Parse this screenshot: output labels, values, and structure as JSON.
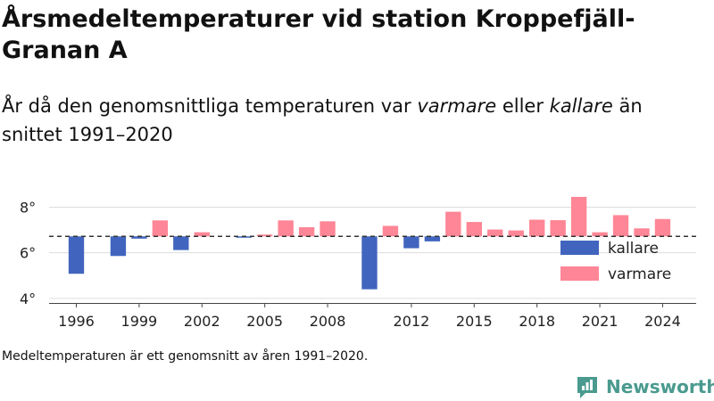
{
  "title": "Årsmedeltemperaturer vid station Kroppefjäll-Granan A",
  "subtitle": {
    "pre": "År då den genomsnittliga temperaturen var ",
    "warm_word": "varmare",
    "mid": " eller ",
    "cold_word": "kallare",
    "post": " än snittet 1991–2020"
  },
  "footnote": "Medeltemperaturen är ett genomsnitt av åren 1991–2020.",
  "brand": {
    "name": "Newsworthy",
    "color": "#4a9a8f"
  },
  "chart_data": {
    "type": "bar",
    "baseline": 6.72,
    "baseline_style": "dashed",
    "ylim": [
      3.8,
      8.8
    ],
    "yticks": [
      4,
      6,
      8
    ],
    "ytick_suffix": "°",
    "xlim": [
      1994.7,
      2025.6
    ],
    "xticks": [
      1996,
      1999,
      2002,
      2005,
      2008,
      2012,
      2015,
      2018,
      2021,
      2024
    ],
    "legend": "right",
    "series": [
      {
        "name": "kallare",
        "color": "#4165be"
      },
      {
        "name": "varmare",
        "color": "#ff8696"
      }
    ],
    "points": [
      {
        "year": 1996,
        "value": 5.08
      },
      {
        "year": 1998,
        "value": 5.86
      },
      {
        "year": 1999,
        "value": 6.62
      },
      {
        "year": 2000,
        "value": 7.42
      },
      {
        "year": 2001,
        "value": 6.12
      },
      {
        "year": 2002,
        "value": 6.9
      },
      {
        "year": 2004,
        "value": 6.66
      },
      {
        "year": 2005,
        "value": 6.8
      },
      {
        "year": 2006,
        "value": 7.42
      },
      {
        "year": 2007,
        "value": 7.12
      },
      {
        "year": 2008,
        "value": 7.38
      },
      {
        "year": 2010,
        "value": 4.4
      },
      {
        "year": 2011,
        "value": 7.18
      },
      {
        "year": 2012,
        "value": 6.2
      },
      {
        "year": 2013,
        "value": 6.5
      },
      {
        "year": 2014,
        "value": 7.8
      },
      {
        "year": 2015,
        "value": 7.35
      },
      {
        "year": 2016,
        "value": 7.02
      },
      {
        "year": 2017,
        "value": 6.98
      },
      {
        "year": 2018,
        "value": 7.45
      },
      {
        "year": 2019,
        "value": 7.43
      },
      {
        "year": 2020,
        "value": 8.45
      },
      {
        "year": 2021,
        "value": 6.9
      },
      {
        "year": 2022,
        "value": 7.65
      },
      {
        "year": 2023,
        "value": 7.07
      },
      {
        "year": 2024,
        "value": 7.48
      }
    ]
  }
}
